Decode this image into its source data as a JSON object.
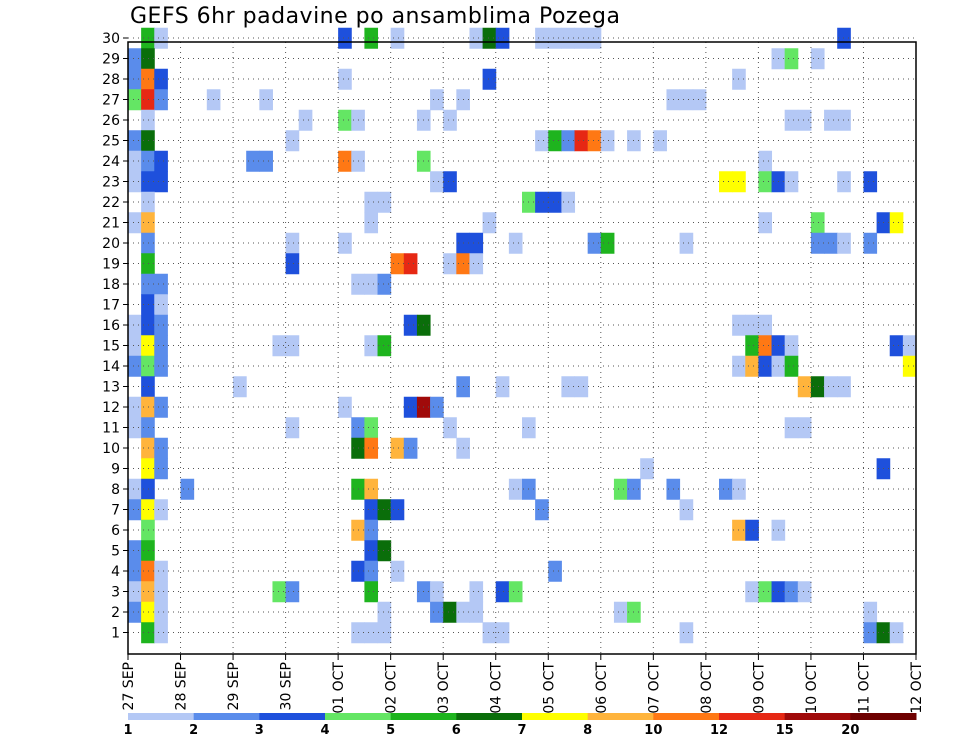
{
  "chart_data": {
    "type": "heatmap",
    "title": "GEFS 6hr padavine po ansamblima Pozega",
    "x_tick_labels": [
      "27 SEP",
      "28 SEP",
      "29 SEP",
      "30 SEP",
      "01 OCT",
      "02 OCT",
      "03 OCT",
      "04 OCT",
      "05 OCT",
      "06 OCT",
      "07 OCT",
      "08 OCT",
      "09 OCT",
      "10 OCT",
      "11 OCT",
      "12 OCT"
    ],
    "y_tick_labels": [
      "1",
      "2",
      "3",
      "4",
      "5",
      "6",
      "7",
      "8",
      "9",
      "10",
      "11",
      "12",
      "13",
      "14",
      "15",
      "16",
      "17",
      "18",
      "19",
      "20",
      "21",
      "22",
      "23",
      "24",
      "25",
      "26",
      "27",
      "28",
      "29",
      "30"
    ],
    "xlim": [
      0,
      60
    ],
    "ylim": [
      0,
      30
    ],
    "grid": true,
    "colorbar": {
      "labels": [
        "1",
        "2",
        "3",
        "4",
        "5",
        "6",
        "7",
        "8",
        "10",
        "12",
        "15",
        "20"
      ],
      "colors": [
        "#b4c8f5",
        "#5a8ceb",
        "#1e50dc",
        "#64e664",
        "#1eb41e",
        "#0a6e0a",
        "#ffff00",
        "#ffb43c",
        "#ff7814",
        "#e62814",
        "#a00a0a",
        "#6e0000"
      ]
    },
    "cells": [
      [
        1,
        30,
        4
      ],
      [
        2,
        30,
        0
      ],
      [
        16,
        30,
        2
      ],
      [
        18,
        30,
        4
      ],
      [
        20,
        30,
        0
      ],
      [
        26,
        30,
        0
      ],
      [
        27,
        30,
        5
      ],
      [
        28,
        30,
        2
      ],
      [
        31,
        30,
        0
      ],
      [
        32,
        30,
        0
      ],
      [
        33,
        30,
        0
      ],
      [
        34,
        30,
        0
      ],
      [
        35,
        30,
        0
      ],
      [
        54,
        30,
        2
      ],
      [
        0,
        29,
        1
      ],
      [
        1,
        29,
        5
      ],
      [
        49,
        29,
        0
      ],
      [
        50,
        29,
        3
      ],
      [
        52,
        29,
        0
      ],
      [
        0,
        28,
        1
      ],
      [
        1,
        28,
        8
      ],
      [
        2,
        28,
        2
      ],
      [
        16,
        28,
        0
      ],
      [
        27,
        28,
        2
      ],
      [
        46,
        28,
        0
      ],
      [
        0,
        27,
        3
      ],
      [
        1,
        27,
        9
      ],
      [
        2,
        27,
        1
      ],
      [
        6,
        27,
        0
      ],
      [
        10,
        27,
        0
      ],
      [
        23,
        27,
        0
      ],
      [
        25,
        27,
        0
      ],
      [
        41,
        27,
        0
      ],
      [
        42,
        27,
        0
      ],
      [
        43,
        27,
        0
      ],
      [
        1,
        26,
        0
      ],
      [
        13,
        26,
        0
      ],
      [
        16,
        26,
        3
      ],
      [
        17,
        26,
        0
      ],
      [
        22,
        26,
        0
      ],
      [
        24,
        26,
        0
      ],
      [
        50,
        26,
        0
      ],
      [
        51,
        26,
        0
      ],
      [
        53,
        26,
        0
      ],
      [
        54,
        26,
        0
      ],
      [
        0,
        25,
        1
      ],
      [
        1,
        25,
        5
      ],
      [
        12,
        25,
        0
      ],
      [
        31,
        25,
        0
      ],
      [
        32,
        25,
        4
      ],
      [
        33,
        25,
        1
      ],
      [
        34,
        25,
        9
      ],
      [
        35,
        25,
        8
      ],
      [
        36,
        25,
        0
      ],
      [
        38,
        25,
        0
      ],
      [
        40,
        25,
        0
      ],
      [
        0,
        24,
        0
      ],
      [
        1,
        24,
        1
      ],
      [
        2,
        24,
        2
      ],
      [
        9,
        24,
        1
      ],
      [
        10,
        24,
        1
      ],
      [
        16,
        24,
        8
      ],
      [
        17,
        24,
        0
      ],
      [
        22,
        24,
        3
      ],
      [
        48,
        24,
        0
      ],
      [
        0,
        23,
        0
      ],
      [
        1,
        23,
        2
      ],
      [
        2,
        23,
        2
      ],
      [
        23,
        23,
        0
      ],
      [
        24,
        23,
        2
      ],
      [
        45,
        23,
        6
      ],
      [
        46,
        23,
        6
      ],
      [
        48,
        23,
        3
      ],
      [
        49,
        23,
        2
      ],
      [
        50,
        23,
        0
      ],
      [
        54,
        23,
        0
      ],
      [
        56,
        23,
        2
      ],
      [
        1,
        22,
        0
      ],
      [
        18,
        22,
        0
      ],
      [
        19,
        22,
        0
      ],
      [
        30,
        22,
        3
      ],
      [
        31,
        22,
        2
      ],
      [
        32,
        22,
        2
      ],
      [
        33,
        22,
        0
      ],
      [
        0,
        21,
        0
      ],
      [
        1,
        21,
        7
      ],
      [
        18,
        21,
        0
      ],
      [
        27,
        21,
        0
      ],
      [
        48,
        21,
        0
      ],
      [
        52,
        21,
        3
      ],
      [
        57,
        21,
        2
      ],
      [
        58,
        21,
        6
      ],
      [
        1,
        20,
        1
      ],
      [
        12,
        20,
        0
      ],
      [
        16,
        20,
        0
      ],
      [
        25,
        20,
        2
      ],
      [
        26,
        20,
        2
      ],
      [
        29,
        20,
        0
      ],
      [
        35,
        20,
        1
      ],
      [
        36,
        20,
        4
      ],
      [
        42,
        20,
        0
      ],
      [
        52,
        20,
        1
      ],
      [
        53,
        20,
        1
      ],
      [
        54,
        20,
        0
      ],
      [
        56,
        20,
        1
      ],
      [
        1,
        19,
        4
      ],
      [
        12,
        19,
        2
      ],
      [
        20,
        19,
        8
      ],
      [
        21,
        19,
        9
      ],
      [
        24,
        19,
        0
      ],
      [
        25,
        19,
        8
      ],
      [
        26,
        19,
        0
      ],
      [
        1,
        18,
        1
      ],
      [
        2,
        18,
        1
      ],
      [
        17,
        18,
        0
      ],
      [
        18,
        18,
        0
      ],
      [
        19,
        18,
        1
      ],
      [
        1,
        17,
        2
      ],
      [
        2,
        17,
        0
      ],
      [
        0,
        16,
        0
      ],
      [
        1,
        16,
        2
      ],
      [
        2,
        16,
        1
      ],
      [
        21,
        16,
        2
      ],
      [
        22,
        16,
        5
      ],
      [
        46,
        16,
        0
      ],
      [
        47,
        16,
        0
      ],
      [
        48,
        16,
        0
      ],
      [
        0,
        15,
        0
      ],
      [
        1,
        15,
        6
      ],
      [
        2,
        15,
        1
      ],
      [
        11,
        15,
        0
      ],
      [
        12,
        15,
        0
      ],
      [
        18,
        15,
        0
      ],
      [
        19,
        15,
        4
      ],
      [
        47,
        15,
        4
      ],
      [
        48,
        15,
        8
      ],
      [
        49,
        15,
        2
      ],
      [
        50,
        15,
        0
      ],
      [
        58,
        15,
        2
      ],
      [
        59,
        15,
        0
      ],
      [
        0,
        14,
        1
      ],
      [
        1,
        14,
        3
      ],
      [
        2,
        14,
        1
      ],
      [
        46,
        14,
        0
      ],
      [
        47,
        14,
        7
      ],
      [
        48,
        14,
        2
      ],
      [
        49,
        14,
        0
      ],
      [
        50,
        14,
        4
      ],
      [
        59,
        14,
        6
      ],
      [
        1,
        13,
        2
      ],
      [
        8,
        13,
        0
      ],
      [
        25,
        13,
        1
      ],
      [
        28,
        13,
        0
      ],
      [
        33,
        13,
        0
      ],
      [
        34,
        13,
        0
      ],
      [
        51,
        13,
        7
      ],
      [
        52,
        13,
        5
      ],
      [
        53,
        13,
        0
      ],
      [
        54,
        13,
        0
      ],
      [
        0,
        12,
        0
      ],
      [
        1,
        12,
        7
      ],
      [
        2,
        12,
        1
      ],
      [
        16,
        12,
        0
      ],
      [
        21,
        12,
        2
      ],
      [
        22,
        12,
        10
      ],
      [
        23,
        12,
        1
      ],
      [
        0,
        11,
        0
      ],
      [
        1,
        11,
        1
      ],
      [
        12,
        11,
        0
      ],
      [
        17,
        11,
        1
      ],
      [
        18,
        11,
        3
      ],
      [
        24,
        11,
        0
      ],
      [
        30,
        11,
        0
      ],
      [
        50,
        11,
        0
      ],
      [
        51,
        11,
        0
      ],
      [
        1,
        10,
        7
      ],
      [
        2,
        10,
        1
      ],
      [
        17,
        10,
        5
      ],
      [
        18,
        10,
        8
      ],
      [
        20,
        10,
        7
      ],
      [
        21,
        10,
        1
      ],
      [
        25,
        10,
        0
      ],
      [
        1,
        9,
        6
      ],
      [
        2,
        9,
        1
      ],
      [
        39,
        9,
        0
      ],
      [
        57,
        9,
        2
      ],
      [
        0,
        8,
        0
      ],
      [
        1,
        8,
        2
      ],
      [
        4,
        8,
        1
      ],
      [
        17,
        8,
        4
      ],
      [
        18,
        8,
        7
      ],
      [
        29,
        8,
        0
      ],
      [
        30,
        8,
        1
      ],
      [
        37,
        8,
        3
      ],
      [
        38,
        8,
        1
      ],
      [
        41,
        8,
        1
      ],
      [
        45,
        8,
        1
      ],
      [
        46,
        8,
        0
      ],
      [
        0,
        7,
        1
      ],
      [
        1,
        7,
        6
      ],
      [
        2,
        7,
        0
      ],
      [
        18,
        7,
        2
      ],
      [
        19,
        7,
        5
      ],
      [
        20,
        7,
        2
      ],
      [
        31,
        7,
        1
      ],
      [
        42,
        7,
        0
      ],
      [
        1,
        6,
        3
      ],
      [
        17,
        6,
        7
      ],
      [
        18,
        6,
        1
      ],
      [
        46,
        6,
        7
      ],
      [
        47,
        6,
        2
      ],
      [
        49,
        6,
        0
      ],
      [
        0,
        5,
        1
      ],
      [
        1,
        5,
        4
      ],
      [
        18,
        5,
        2
      ],
      [
        19,
        5,
        5
      ],
      [
        0,
        4,
        1
      ],
      [
        1,
        4,
        8
      ],
      [
        2,
        4,
        0
      ],
      [
        17,
        4,
        2
      ],
      [
        18,
        4,
        1
      ],
      [
        20,
        4,
        0
      ],
      [
        32,
        4,
        1
      ],
      [
        0,
        3,
        0
      ],
      [
        1,
        3,
        7
      ],
      [
        2,
        3,
        0
      ],
      [
        11,
        3,
        3
      ],
      [
        12,
        3,
        1
      ],
      [
        18,
        3,
        4
      ],
      [
        22,
        3,
        1
      ],
      [
        23,
        3,
        0
      ],
      [
        26,
        3,
        0
      ],
      [
        28,
        3,
        2
      ],
      [
        29,
        3,
        3
      ],
      [
        47,
        3,
        0
      ],
      [
        48,
        3,
        3
      ],
      [
        49,
        3,
        2
      ],
      [
        50,
        3,
        1
      ],
      [
        51,
        3,
        0
      ],
      [
        0,
        2,
        1
      ],
      [
        1,
        2,
        6
      ],
      [
        2,
        2,
        0
      ],
      [
        19,
        2,
        0
      ],
      [
        23,
        2,
        1
      ],
      [
        24,
        2,
        5
      ],
      [
        25,
        2,
        0
      ],
      [
        26,
        2,
        0
      ],
      [
        37,
        2,
        0
      ],
      [
        38,
        2,
        3
      ],
      [
        56,
        2,
        0
      ],
      [
        1,
        1,
        4
      ],
      [
        2,
        1,
        0
      ],
      [
        17,
        1,
        0
      ],
      [
        18,
        1,
        0
      ],
      [
        19,
        1,
        0
      ],
      [
        27,
        1,
        0
      ],
      [
        28,
        1,
        0
      ],
      [
        42,
        1,
        0
      ],
      [
        56,
        1,
        1
      ],
      [
        57,
        1,
        5
      ],
      [
        58,
        1,
        0
      ]
    ]
  }
}
